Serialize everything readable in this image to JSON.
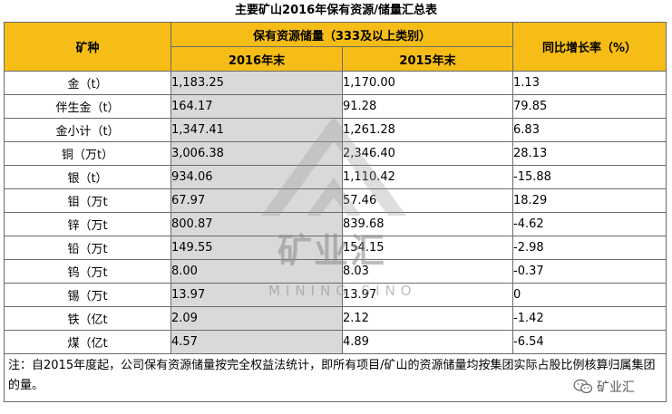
{
  "title": "主要矿山2016年保有资源/储量汇总表",
  "header": {
    "col_mineral": "矿种",
    "col_group": "保有资源储量（333及以上类别）",
    "col_2016": "2016年末",
    "col_2015": "2015年末",
    "col_growth": "同比增长率（%）"
  },
  "rows": [
    {
      "name": "金（t）",
      "v2016": "1,183.25",
      "v2015": "1,170.00",
      "growth": "1.13"
    },
    {
      "name": "伴生金（t）",
      "v2016": "164.17",
      "v2015": "91.28",
      "growth": "79.85"
    },
    {
      "name": "金小计（t）",
      "v2016": "1,347.41",
      "v2015": "1,261.28",
      "growth": "6.83"
    },
    {
      "name": "铜（万t）",
      "v2016": "3,006.38",
      "v2015": "2,346.40",
      "growth": "28.13"
    },
    {
      "name": "银（t）",
      "v2016": "934.06",
      "v2015": "1,110.42",
      "growth": "-15.88"
    },
    {
      "name": "钼（万t",
      "v2016": "67.97",
      "v2015": "57.46",
      "growth": "18.29"
    },
    {
      "name": "锌（万t",
      "v2016": "800.87",
      "v2015": "839.68",
      "growth": "-4.62"
    },
    {
      "name": "铅（万t",
      "v2016": "149.55",
      "v2015": "154.15",
      "growth": "-2.98"
    },
    {
      "name": "钨（万t",
      "v2016": "8.00",
      "v2015": "8.03",
      "growth": "-0.37"
    },
    {
      "name": "锡（万t",
      "v2016": "13.97",
      "v2015": "13.97",
      "growth": "0"
    },
    {
      "name": "铁（亿t",
      "v2016": "2.09",
      "v2015": "2.12",
      "growth": "-1.42"
    },
    {
      "name": "煤（亿t",
      "v2016": "4.57",
      "v2015": "4.89",
      "growth": "-6.54"
    }
  ],
  "note": "注：自2015年度起，公司保有资源储量按完全权益法统计，即所有项目/矿山的资源储量均按集团实际占股比例核算归属集团的量。",
  "watermark": {
    "name": "矿业汇",
    "subtitle": "MINING SINO"
  },
  "brand": {
    "icon": "wechat-icon",
    "label": "矿业汇"
  },
  "colors": {
    "header_bg": "#f6bd16",
    "highlight_col_bg": "#d9d9d9",
    "border": "#6b6b6b"
  }
}
